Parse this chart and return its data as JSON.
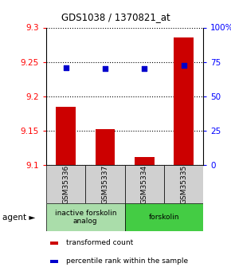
{
  "title": "GDS1038 / 1370821_at",
  "samples": [
    "GSM35336",
    "GSM35337",
    "GSM35334",
    "GSM35335"
  ],
  "bar_values": [
    9.185,
    9.152,
    9.112,
    9.285
  ],
  "scatter_values": [
    70.5,
    70.0,
    70.2,
    72.5
  ],
  "ylim_left": [
    9.1,
    9.3
  ],
  "ylim_right": [
    0,
    100
  ],
  "yticks_left": [
    9.1,
    9.15,
    9.2,
    9.25,
    9.3
  ],
  "yticks_right": [
    0,
    25,
    50,
    75,
    100
  ],
  "ytick_labels_right": [
    "0",
    "25",
    "50",
    "75",
    "100%"
  ],
  "bar_color": "#cc0000",
  "scatter_color": "#0000cc",
  "agent_groups": [
    {
      "label": "inactive forskolin\nanalog",
      "color": "#aaddaa",
      "span": [
        0,
        2
      ]
    },
    {
      "label": "forskolin",
      "color": "#44cc44",
      "span": [
        2,
        4
      ]
    }
  ],
  "legend_items": [
    {
      "color": "#cc0000",
      "label": "transformed count"
    },
    {
      "color": "#0000cc",
      "label": "percentile rank within the sample"
    }
  ],
  "agent_label": "agent ►",
  "bar_base": 9.1,
  "sample_box_color": "#d0d0d0",
  "fig_bg": "#ffffff"
}
